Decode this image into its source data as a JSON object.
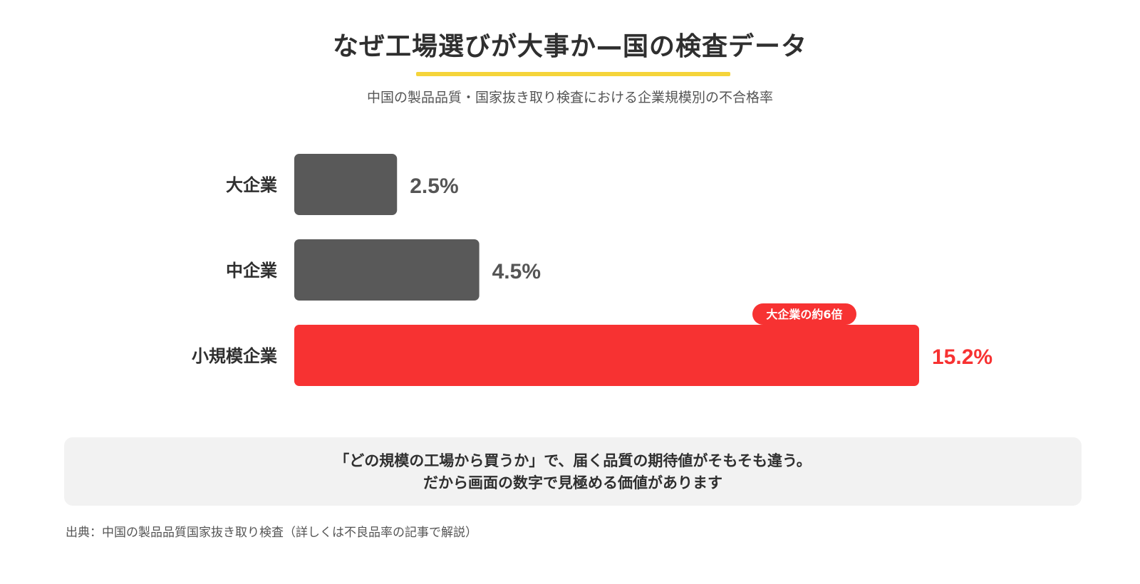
{
  "title": "なぜ工場選びが大事か—国の検査データ",
  "subtitle": "中国の製品品質・国家抜き取り検査における企業規模別の不合格率",
  "colors": {
    "accent_underline": "#f5d43a",
    "bar_default": "#595959",
    "bar_highlight": "#f73232",
    "value_default": "#555555",
    "value_highlight": "#f73232",
    "note_background": "#f2f2f2"
  },
  "chart_data": {
    "type": "bar",
    "orientation": "horizontal",
    "categories": [
      "大企業",
      "中企業",
      "小規模企業"
    ],
    "values": [
      2.5,
      4.5,
      15.2
    ],
    "value_labels": [
      "2.5%",
      "4.5%",
      "15.2%"
    ],
    "unit": "%",
    "highlight_index": 2,
    "annotation": {
      "text": "大企業の約6倍",
      "category": "小規模企業"
    },
    "xlim": [
      0,
      15.2
    ],
    "grid": false,
    "legend": "none"
  },
  "note": {
    "line1": "「どの規模の工場から買うか」で、届く品質の期待値がそもそも違う。",
    "line2": "だから画面の数字で見極める価値があります"
  },
  "source": "出典：中国の製品品質国家抜き取り検査（詳しくは不良品率の記事で解説）"
}
